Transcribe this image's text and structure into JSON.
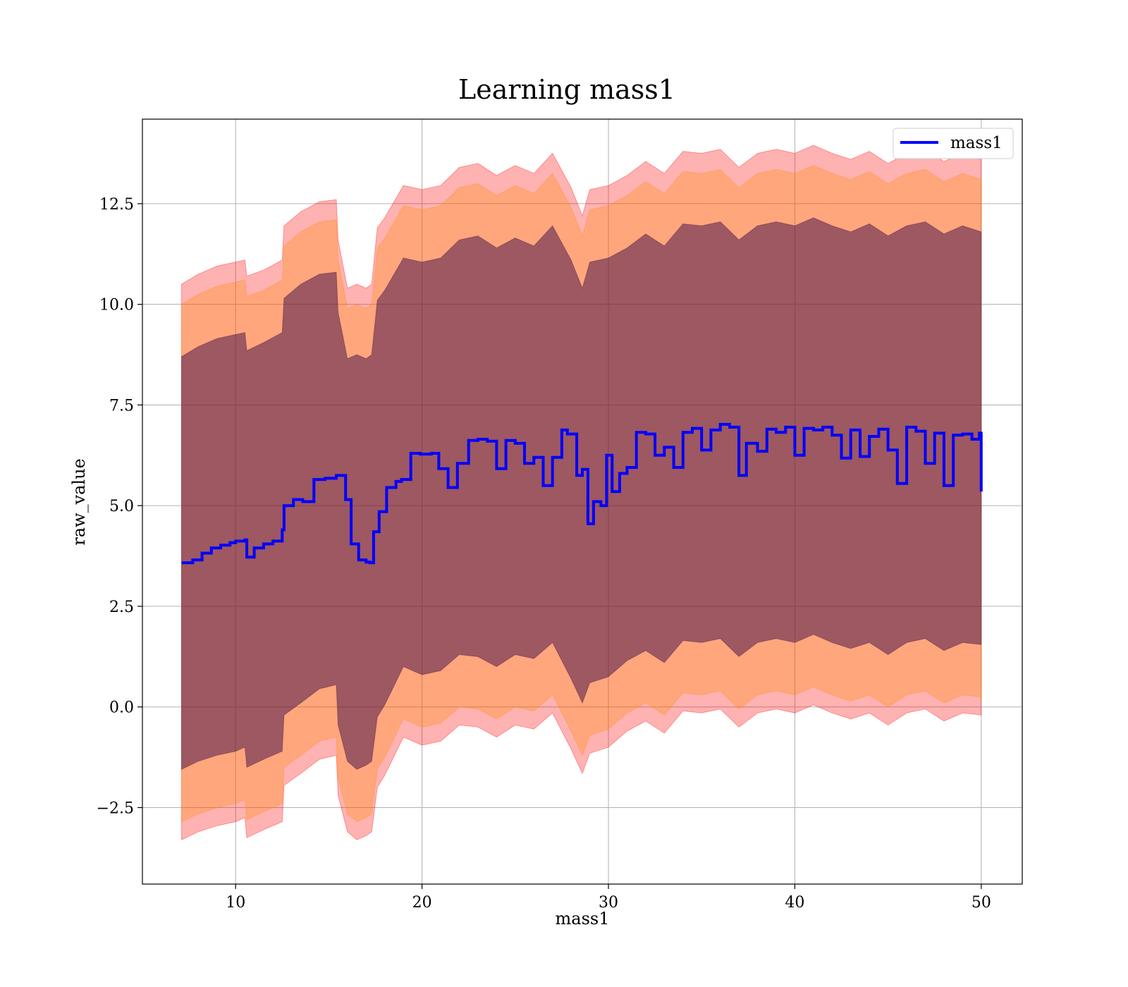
{
  "chart_data": {
    "type": "line",
    "title": "Learning mass1",
    "xlabel": "mass1",
    "ylabel": "raw_value",
    "xlim": [
      5.0,
      52.2
    ],
    "ylim": [
      -4.4,
      14.6
    ],
    "x_ticks": [
      10,
      20,
      30,
      40,
      50
    ],
    "x_tick_labels": [
      "10",
      "20",
      "30",
      "40",
      "50"
    ],
    "y_ticks": [
      -2.5,
      0.0,
      2.5,
      5.0,
      7.5,
      10.0,
      12.5
    ],
    "y_tick_labels": [
      "−2.5",
      "0.0",
      "2.5",
      "5.0",
      "7.5",
      "10.0",
      "12.5"
    ],
    "grid": true,
    "legend": {
      "position": "upper-right",
      "entries": [
        "mass1"
      ]
    },
    "colors": {
      "line": "#0000ff",
      "band_outer": "#ff0000",
      "band_middle": "#ff8c00",
      "band_inner": "#3b0a45"
    },
    "series": [
      {
        "name": "mass1",
        "x": [
          7.1,
          7.7,
          8.2,
          8.7,
          9.2,
          9.7,
          10.0,
          10.5,
          10.6,
          11.0,
          11.5,
          12.0,
          12.5,
          12.6,
          13.1,
          13.6,
          14.2,
          14.8,
          15.4,
          15.9,
          16.2,
          16.6,
          17.0,
          17.2,
          17.4,
          17.7,
          18.1,
          18.6,
          18.9,
          19.4,
          19.9,
          20.5,
          20.9,
          21.4,
          21.9,
          22.5,
          23.0,
          23.5,
          24.0,
          24.5,
          25.0,
          25.5,
          26.0,
          26.5,
          27.0,
          27.5,
          27.8,
          28.3,
          28.6,
          28.9,
          29.2,
          29.6,
          29.9,
          30.2,
          30.6,
          31.0,
          31.5,
          32.0,
          32.5,
          33.0,
          33.5,
          34.0,
          34.5,
          35.0,
          35.5,
          36.0,
          36.5,
          37.0,
          37.4,
          38.0,
          38.5,
          39.0,
          39.5,
          40.0,
          40.5,
          41.0,
          41.5,
          42.0,
          42.5,
          43.0,
          43.5,
          44.0,
          44.5,
          45.0,
          45.5,
          46.0,
          46.5,
          47.0,
          47.5,
          48.0,
          48.5,
          49.0,
          49.5,
          49.9,
          50.0
        ],
        "values": [
          3.58,
          3.65,
          3.82,
          3.95,
          4.02,
          4.08,
          4.12,
          4.15,
          3.72,
          3.95,
          4.05,
          4.12,
          4.4,
          5.0,
          5.15,
          5.1,
          5.65,
          5.68,
          5.75,
          5.15,
          4.05,
          3.65,
          3.6,
          3.58,
          4.35,
          4.85,
          5.45,
          5.6,
          5.65,
          6.3,
          6.28,
          6.3,
          5.92,
          5.45,
          6.05,
          6.62,
          6.65,
          6.6,
          5.92,
          6.62,
          6.55,
          6.05,
          6.2,
          5.5,
          6.2,
          6.88,
          6.78,
          5.75,
          5.9,
          4.55,
          5.1,
          5.0,
          6.25,
          5.35,
          5.8,
          5.95,
          6.82,
          6.78,
          6.25,
          6.45,
          5.95,
          6.82,
          6.92,
          6.38,
          6.88,
          7.02,
          6.95,
          5.75,
          6.55,
          6.35,
          6.9,
          6.82,
          6.95,
          6.25,
          6.92,
          6.88,
          6.95,
          6.75,
          6.18,
          6.88,
          6.22,
          6.72,
          6.9,
          6.38,
          5.55,
          6.95,
          6.85,
          6.05,
          6.8,
          5.5,
          6.75,
          6.78,
          6.65,
          6.8,
          5.35
        ]
      }
    ],
    "bands": [
      {
        "name": "outer",
        "x": [
          7.1,
          8.0,
          9.0,
          10.0,
          10.5,
          10.6,
          11.5,
          12.5,
          12.6,
          13.5,
          14.5,
          15.4,
          15.5,
          16.0,
          16.5,
          17.0,
          17.3,
          17.6,
          18.0,
          19.0,
          20.0,
          21.0,
          22.0,
          23.0,
          24.0,
          25.0,
          26.0,
          27.0,
          28.0,
          28.6,
          29.0,
          30.0,
          31.0,
          32.0,
          33.0,
          34.0,
          35.0,
          36.0,
          37.0,
          38.0,
          39.0,
          40.0,
          41.0,
          42.0,
          43.0,
          44.0,
          45.0,
          46.0,
          47.0,
          48.0,
          49.0,
          50.0
        ],
        "upper": [
          10.5,
          10.75,
          10.95,
          11.05,
          11.1,
          10.7,
          10.85,
          11.1,
          11.95,
          12.3,
          12.55,
          12.6,
          11.6,
          10.4,
          10.5,
          10.4,
          10.5,
          11.9,
          12.15,
          12.95,
          12.85,
          12.95,
          13.4,
          13.5,
          13.2,
          13.45,
          13.25,
          13.75,
          12.9,
          12.2,
          12.85,
          12.95,
          13.2,
          13.55,
          13.25,
          13.8,
          13.75,
          13.85,
          13.4,
          13.75,
          13.85,
          13.75,
          13.95,
          13.75,
          13.6,
          13.8,
          13.5,
          13.75,
          13.85,
          13.55,
          13.75,
          13.6
        ],
        "lower": [
          -3.3,
          -3.1,
          -2.95,
          -2.85,
          -2.75,
          -3.25,
          -3.05,
          -2.85,
          -1.95,
          -1.65,
          -1.3,
          -1.2,
          -2.2,
          -3.1,
          -3.3,
          -3.2,
          -3.1,
          -2.0,
          -1.7,
          -0.75,
          -0.95,
          -0.85,
          -0.45,
          -0.5,
          -0.75,
          -0.45,
          -0.55,
          -0.15,
          -1.05,
          -1.65,
          -1.15,
          -1.0,
          -0.6,
          -0.35,
          -0.65,
          -0.1,
          -0.15,
          -0.05,
          -0.5,
          -0.15,
          -0.05,
          -0.15,
          0.05,
          -0.15,
          -0.3,
          -0.15,
          -0.45,
          -0.15,
          -0.05,
          -0.35,
          -0.15,
          -0.2
        ]
      },
      {
        "name": "middle",
        "x": [
          7.1,
          8.0,
          9.0,
          10.0,
          10.5,
          10.6,
          11.5,
          12.5,
          12.6,
          13.5,
          14.5,
          15.4,
          15.5,
          16.0,
          16.5,
          17.0,
          17.3,
          17.6,
          18.0,
          19.0,
          20.0,
          21.0,
          22.0,
          23.0,
          24.0,
          25.0,
          26.0,
          27.0,
          28.0,
          28.6,
          29.0,
          30.0,
          31.0,
          32.0,
          33.0,
          34.0,
          35.0,
          36.0,
          37.0,
          38.0,
          39.0,
          40.0,
          41.0,
          42.0,
          43.0,
          44.0,
          45.0,
          46.0,
          47.0,
          48.0,
          49.0,
          50.0
        ],
        "upper": [
          10.0,
          10.25,
          10.45,
          10.55,
          10.6,
          10.2,
          10.35,
          10.6,
          11.45,
          11.8,
          12.05,
          12.1,
          11.1,
          9.9,
          10.0,
          9.9,
          10.0,
          11.4,
          11.65,
          12.45,
          12.35,
          12.45,
          12.9,
          13.0,
          12.7,
          12.95,
          12.75,
          13.25,
          12.4,
          11.7,
          12.35,
          12.45,
          12.7,
          13.05,
          12.75,
          13.3,
          13.25,
          13.35,
          12.9,
          13.25,
          13.35,
          13.25,
          13.45,
          13.25,
          13.1,
          13.3,
          13.0,
          13.25,
          13.35,
          13.05,
          13.25,
          13.1
        ],
        "lower": [
          -2.85,
          -2.65,
          -2.5,
          -2.4,
          -2.3,
          -2.8,
          -2.6,
          -2.4,
          -1.5,
          -1.2,
          -0.85,
          -0.75,
          -1.75,
          -2.65,
          -2.85,
          -2.75,
          -2.65,
          -1.55,
          -1.25,
          -0.3,
          -0.5,
          -0.4,
          0.0,
          -0.05,
          -0.3,
          0.0,
          -0.1,
          0.3,
          -0.6,
          -1.2,
          -0.7,
          -0.55,
          -0.15,
          0.1,
          -0.2,
          0.35,
          0.3,
          0.4,
          -0.05,
          0.3,
          0.4,
          0.3,
          0.5,
          0.3,
          0.15,
          0.3,
          0.0,
          0.3,
          0.4,
          0.1,
          0.3,
          0.25
        ]
      },
      {
        "name": "inner",
        "x": [
          7.1,
          8.0,
          9.0,
          10.0,
          10.5,
          10.6,
          11.5,
          12.5,
          12.6,
          13.5,
          14.5,
          15.4,
          15.5,
          16.0,
          16.5,
          17.0,
          17.3,
          17.6,
          18.0,
          19.0,
          20.0,
          21.0,
          22.0,
          23.0,
          24.0,
          25.0,
          26.0,
          27.0,
          28.0,
          28.6,
          29.0,
          30.0,
          31.0,
          32.0,
          33.0,
          34.0,
          35.0,
          36.0,
          37.0,
          38.0,
          39.0,
          40.0,
          41.0,
          42.0,
          43.0,
          44.0,
          45.0,
          46.0,
          47.0,
          48.0,
          49.0,
          50.0
        ],
        "upper": [
          8.7,
          8.95,
          9.15,
          9.25,
          9.3,
          8.85,
          9.05,
          9.3,
          10.15,
          10.5,
          10.75,
          10.8,
          9.8,
          8.65,
          8.75,
          8.65,
          8.75,
          10.1,
          10.35,
          11.15,
          11.05,
          11.15,
          11.6,
          11.7,
          11.4,
          11.65,
          11.45,
          11.95,
          11.1,
          10.4,
          11.05,
          11.15,
          11.4,
          11.75,
          11.45,
          12.0,
          11.95,
          12.05,
          11.6,
          11.95,
          12.05,
          11.95,
          12.15,
          11.95,
          11.8,
          12.0,
          11.7,
          11.95,
          12.05,
          11.75,
          11.95,
          11.8
        ],
        "lower": [
          -1.55,
          -1.35,
          -1.2,
          -1.1,
          -1.0,
          -1.5,
          -1.3,
          -1.1,
          -0.2,
          0.1,
          0.45,
          0.55,
          -0.45,
          -1.35,
          -1.55,
          -1.45,
          -1.35,
          -0.25,
          0.05,
          1.0,
          0.8,
          0.9,
          1.3,
          1.25,
          1.0,
          1.3,
          1.2,
          1.6,
          0.7,
          0.1,
          0.6,
          0.75,
          1.15,
          1.4,
          1.1,
          1.65,
          1.6,
          1.7,
          1.25,
          1.6,
          1.7,
          1.6,
          1.8,
          1.6,
          1.45,
          1.6,
          1.3,
          1.6,
          1.7,
          1.4,
          1.6,
          1.55
        ]
      }
    ]
  }
}
